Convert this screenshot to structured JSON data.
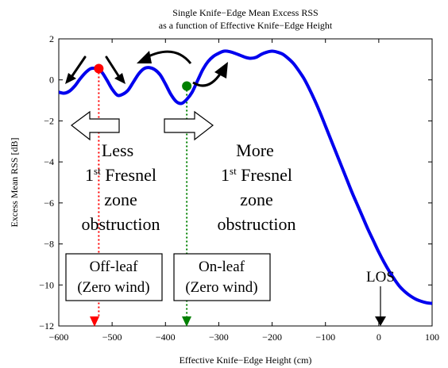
{
  "chart_data": {
    "type": "line",
    "title": [
      "Single Knife−Edge Mean Excess RSS",
      "as a function of Effective Knife−Edge Height"
    ],
    "xlabel": "Effective Knife−Edge Height (cm)",
    "ylabel": "Excess Mean RSS  [dB]",
    "xlim": [
      -600,
      100
    ],
    "ylim": [
      -12,
      2
    ],
    "xticks": [
      -600,
      -500,
      -400,
      -300,
      -200,
      -100,
      0,
      100
    ],
    "xtick_labels": [
      "−600",
      "−500",
      "−400",
      "−300",
      "−200",
      "−100",
      "0",
      "100"
    ],
    "yticks": [
      -12,
      -10,
      -8,
      -6,
      -4,
      -2,
      0,
      2
    ],
    "ytick_labels": [
      "−12",
      "−10",
      "−8",
      "−6",
      "−4",
      "−2",
      "0",
      "2"
    ],
    "grid": false,
    "series": [
      {
        "color": "#0000ee",
        "x": [
          -600,
          -590,
          -580,
          -570,
          -560,
          -550,
          -540,
          -530,
          -520,
          -510,
          -500,
          -490,
          -480,
          -470,
          -460,
          -450,
          -440,
          -430,
          -420,
          -410,
          -400,
          -390,
          -380,
          -370,
          -360,
          -350,
          -340,
          -330,
          -320,
          -310,
          -300,
          -290,
          -280,
          -270,
          -260,
          -250,
          -240,
          -230,
          -220,
          -210,
          -200,
          -190,
          -180,
          -170,
          -160,
          -150,
          -140,
          -130,
          -120,
          -110,
          -100,
          -90,
          -80,
          -70,
          -60,
          -50,
          -40,
          -30,
          -20,
          -10,
          0,
          10,
          20,
          30,
          40,
          50,
          60,
          70,
          80,
          90,
          100
        ],
        "y": [
          -0.6,
          -0.65,
          -0.55,
          -0.3,
          0.05,
          0.35,
          0.55,
          0.55,
          0.4,
          0.0,
          -0.45,
          -0.75,
          -0.7,
          -0.5,
          -0.1,
          0.3,
          0.55,
          0.6,
          0.5,
          0.25,
          -0.2,
          -0.7,
          -1.05,
          -1.15,
          -0.95,
          -0.6,
          -0.05,
          0.5,
          0.9,
          1.15,
          1.3,
          1.4,
          1.38,
          1.3,
          1.2,
          1.1,
          1.05,
          1.1,
          1.25,
          1.35,
          1.4,
          1.35,
          1.25,
          1.05,
          0.8,
          0.45,
          0.05,
          -0.45,
          -1.0,
          -1.6,
          -2.25,
          -2.9,
          -3.55,
          -4.2,
          -4.85,
          -5.5,
          -6.1,
          -6.7,
          -7.3,
          -7.85,
          -8.4,
          -8.9,
          -9.35,
          -9.75,
          -10.1,
          -10.35,
          -10.55,
          -10.7,
          -10.8,
          -10.87,
          -10.9
        ]
      }
    ],
    "markers": [
      {
        "x": -525,
        "y": 0.55,
        "color": "#ff0000"
      },
      {
        "x": -360,
        "y": -0.3,
        "color": "#008000"
      }
    ],
    "vertical_lines": [
      {
        "x": -525,
        "from_y": 0.55,
        "to_y": -12,
        "color": "#ff0000"
      },
      {
        "x": -360,
        "from_y": -0.3,
        "to_y": -12,
        "color": "#008000"
      }
    ],
    "annotations": {
      "less_block": {
        "lines": [
          "Less",
          "1st Fresnel",
          "zone",
          "obstruction"
        ]
      },
      "more_block": {
        "lines": [
          "More",
          "1st Fresnel",
          "zone",
          "obstruction"
        ]
      },
      "offleaf_box": {
        "lines": [
          "Off-leaf",
          "(Zero wind)"
        ]
      },
      "onleaf_box": {
        "lines": [
          "On-leaf",
          "(Zero wind)"
        ]
      },
      "los": "LOS"
    }
  }
}
